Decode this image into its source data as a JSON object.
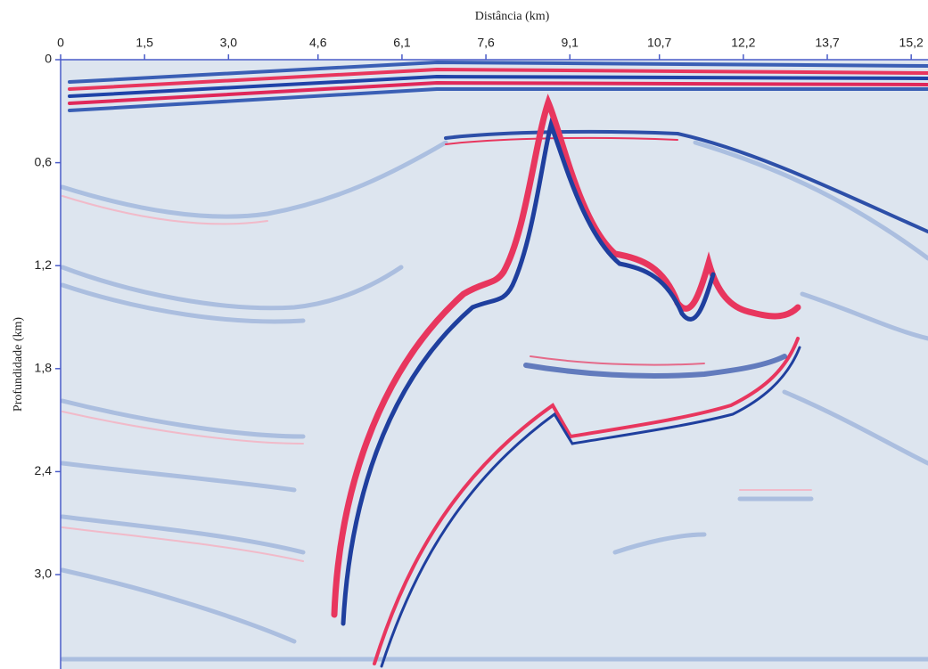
{
  "chart_data": {
    "type": "seismic",
    "xlabel": "Distância (km)",
    "ylabel": "Profundidade (km)",
    "xlim": [
      0,
      15.5
    ],
    "xticks": [
      0,
      {
        "value": 1.5,
        "label": "1,5"
      },
      {
        "value": 3.0,
        "label": "3,0"
      },
      {
        "value": 4.6,
        "label": "4,6"
      },
      {
        "value": 6.1,
        "label": "6,1"
      },
      {
        "value": 7.6,
        "label": "7,6"
      },
      {
        "value": 9.1,
        "label": "9,1"
      },
      {
        "value": 10.7,
        "label": "10,7"
      },
      {
        "value": 12.2,
        "label": "12,2"
      },
      {
        "value": 13.7,
        "label": "13,7"
      },
      {
        "value": 15.2,
        "label": "15,2"
      }
    ],
    "ylim": [
      0,
      3.55
    ],
    "yticks": [
      0,
      {
        "value": 0.6,
        "label": "0,6"
      },
      {
        "value": 1.2,
        "label": "1,2"
      },
      {
        "value": 1.8,
        "label": "1,8"
      },
      {
        "value": 2.4,
        "label": "2,4"
      },
      {
        "value": 3.0,
        "label": "3,0"
      }
    ],
    "axis_color": "#4a5cc8"
  }
}
